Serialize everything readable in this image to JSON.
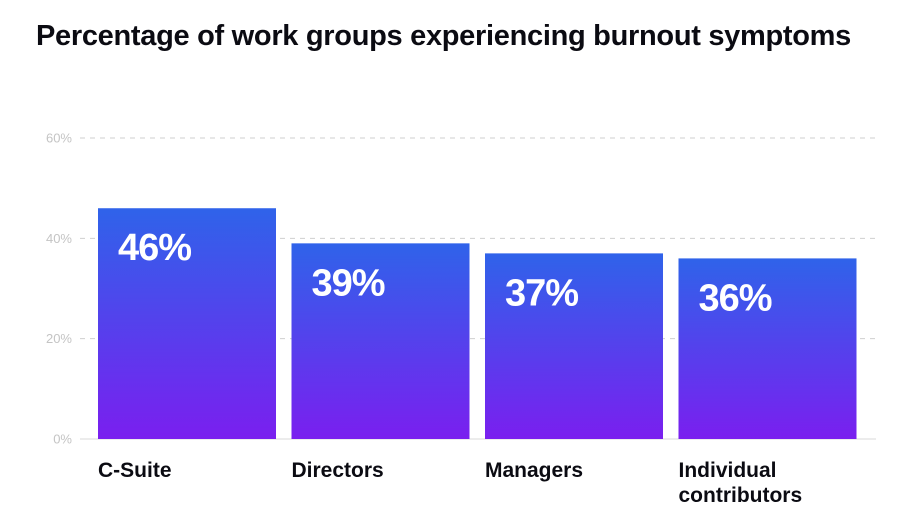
{
  "chart_data": {
    "type": "bar",
    "title": "Percentage of work groups experiencing burnout symptoms",
    "categories": [
      [
        "C-Suite"
      ],
      [
        "Directors"
      ],
      [
        "Managers"
      ],
      [
        "Individual",
        "contributors"
      ]
    ],
    "values": [
      46,
      39,
      37,
      36
    ],
    "value_labels": [
      "46%",
      "39%",
      "37%",
      "36%"
    ],
    "y_ticks": [
      0,
      20,
      40,
      60
    ],
    "y_tick_labels": [
      "0%",
      "20%",
      "40%",
      "60%"
    ],
    "ylim": [
      0,
      60
    ],
    "grid": true,
    "legend": "none",
    "colors": {
      "bar_top": "#2f63ea",
      "bar_bottom": "#7a1fef",
      "grid": "#cfcfcf",
      "tick_text": "#c4c4c4",
      "label_text": "#0b0b12",
      "value_text": "#ffffff"
    }
  }
}
